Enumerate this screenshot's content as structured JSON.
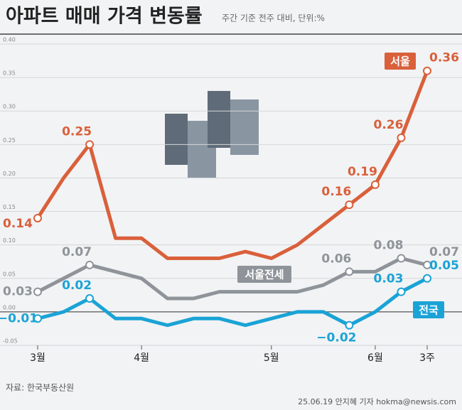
{
  "chart_data": {
    "type": "line",
    "title": "아파트 매매 가격 변동률",
    "subtitle": "주간 기준 전주 대비, 단위:%",
    "source": "자료: 한국부동산원",
    "credit": "25.06.19 안지혜 기자 hokma@newsis.com",
    "categories": [
      "3월",
      null,
      null,
      null,
      "4월",
      null,
      null,
      null,
      null,
      "5월",
      null,
      null,
      null,
      "6월",
      null,
      "3주"
    ],
    "ylim": [
      -0.05,
      0.4
    ],
    "yticks": [
      {
        "value": 0.4,
        "label": "0.40"
      },
      {
        "value": 0.35,
        "label": "0.35"
      },
      {
        "value": 0.3,
        "label": "0.30"
      },
      {
        "value": 0.25,
        "label": "0.25"
      },
      {
        "value": 0.2,
        "label": "0.20"
      },
      {
        "value": 0.15,
        "label": "0.15"
      },
      {
        "value": 0.1,
        "label": "0.10"
      },
      {
        "value": 0.05,
        "label": "0.05"
      },
      {
        "value": 0,
        "label": "0.00"
      },
      {
        "value": -0.05,
        "label": "-0.05"
      }
    ],
    "grid": true,
    "series": [
      {
        "name": "서울",
        "color": "#d9603b",
        "values": [
          0.14,
          0.2,
          0.25,
          0.11,
          0.11,
          0.08,
          0.08,
          0.08,
          0.09,
          0.08,
          0.1,
          0.13,
          0.16,
          0.19,
          0.26,
          0.36
        ],
        "value_labels": [
          "0.14",
          null,
          "0.25",
          null,
          null,
          null,
          null,
          null,
          null,
          null,
          null,
          null,
          "0.16",
          "0.19",
          "0.26",
          "0.36"
        ]
      },
      {
        "name": "서울전세",
        "color": "#8e9499",
        "values": [
          0.03,
          0.05,
          0.07,
          0.06,
          0.05,
          0.02,
          0.02,
          0.03,
          0.03,
          0.03,
          0.03,
          0.04,
          0.06,
          0.06,
          0.08,
          0.07
        ],
        "value_labels": [
          "0.03",
          null,
          "0.07",
          null,
          null,
          null,
          null,
          null,
          null,
          null,
          null,
          null,
          "0.06",
          null,
          "0.08",
          "0.07"
        ]
      },
      {
        "name": "전국",
        "color": "#1aa3d6",
        "values": [
          -0.01,
          0,
          0.02,
          -0.01,
          -0.01,
          -0.02,
          -0.01,
          -0.01,
          -0.02,
          -0.01,
          0,
          0,
          -0.02,
          0,
          0.03,
          0.05
        ],
        "value_labels": [
          "−0.01",
          null,
          "0.02",
          null,
          null,
          null,
          null,
          null,
          null,
          null,
          null,
          null,
          "−0.02",
          null,
          "0.03",
          "0.05"
        ]
      }
    ]
  }
}
